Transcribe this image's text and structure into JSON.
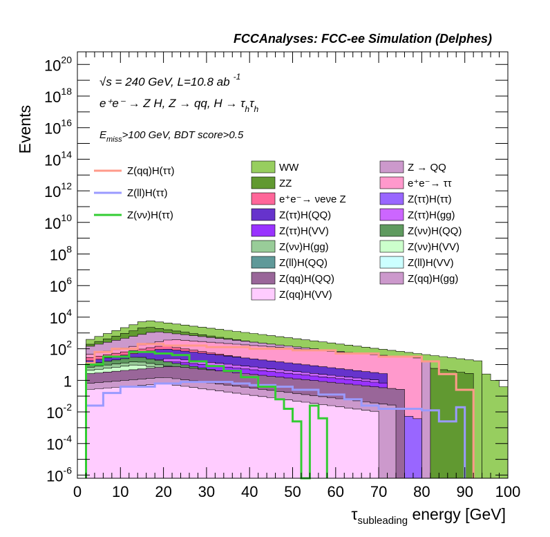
{
  "chart_data": {
    "type": "area",
    "title": "FCCAnalyses: FCC-ee Simulation (Delphes)",
    "ylabel": "Events",
    "xlabel_main": "τ",
    "xlabel_sub": "subleading",
    "xlabel_rest": " energy [GeV]",
    "xlim": [
      0,
      100
    ],
    "ylim_exp": [
      -6.2,
      20.8
    ],
    "yscale": "log",
    "x_ticks": [
      0,
      10,
      20,
      30,
      40,
      50,
      60,
      70,
      80,
      90,
      100
    ],
    "x_tick_labels": [
      "0",
      "10",
      "20",
      "30",
      "40",
      "50",
      "60",
      "70",
      "80",
      "90",
      "100"
    ],
    "y_tick_exps": [
      -6,
      -4,
      -2,
      0,
      2,
      4,
      6,
      8,
      10,
      12,
      14,
      16,
      18,
      20
    ],
    "y_tick_labels": [
      {
        "base": "10",
        "exp": "-6"
      },
      {
        "base": "10",
        "exp": "-4"
      },
      {
        "base": "10",
        "exp": "-2"
      },
      {
        "base": "1",
        "exp": ""
      },
      {
        "base": "10",
        "exp": "2"
      },
      {
        "base": "10",
        "exp": "4"
      },
      {
        "base": "10",
        "exp": "6"
      },
      {
        "base": "10",
        "exp": "8"
      },
      {
        "base": "10",
        "exp": "10"
      },
      {
        "base": "10",
        "exp": "12"
      },
      {
        "base": "10",
        "exp": "14"
      },
      {
        "base": "10",
        "exp": "16"
      },
      {
        "base": "10",
        "exp": "18"
      },
      {
        "base": "10",
        "exp": "20"
      }
    ],
    "annotations": [
      {
        "id": "energy",
        "text": "√s = 240 GeV, L=10.8 ab",
        "sup": "-1"
      },
      {
        "id": "process",
        "text": "e⁺e⁻ → Z H, Z → qq, H → τ",
        "sub1": "h",
        "text2": "τ",
        "sub2": "h"
      },
      {
        "id": "cuts",
        "text1": "E",
        "sub": "miss",
        "text2": ">100 GeV, BDT score>0.5"
      }
    ],
    "bin_width": 2,
    "stack_series": [
      {
        "name": "WW",
        "color": "#97ce5f",
        "segments": [
          {
            "x0": 2,
            "x1": 94,
            "start": 2.5,
            "peak": 3.8,
            "peak_x": 16,
            "end": 1.2
          },
          {
            "x0": 94,
            "x1": 100,
            "start": 0.6,
            "peak": 0.6,
            "peak_x": 94,
            "end": -0.6
          }
        ]
      },
      {
        "name": "ZZ",
        "color": "#619931",
        "segments": [
          {
            "x0": 2,
            "x1": 92,
            "start": 2.2,
            "peak": 3.4,
            "peak_x": 16,
            "end": 0.4
          }
        ]
      },
      {
        "name": "Z → QQ",
        "color": "#cc99cc",
        "segments": [
          {
            "x0": 2,
            "x1": 82,
            "start": 2.1,
            "peak": 3.1,
            "peak_x": 18,
            "end": 1.2
          }
        ]
      },
      {
        "name": "e⁺e⁻→ ττ",
        "color": "#ff99cc",
        "segments": [
          {
            "x0": 2,
            "x1": 80,
            "start": 1.6,
            "peak": 2.6,
            "peak_x": 22,
            "end": 1.4
          }
        ]
      },
      {
        "name": "e⁺e⁻→ νeνe Z",
        "color": "#ff6699",
        "segments": [
          {
            "x0": 2,
            "x1": 68,
            "start": 1.4,
            "peak": 2.2,
            "peak_x": 20,
            "end": 0.2
          }
        ]
      },
      {
        "name": "Z(ττ)H(ττ)",
        "color": "#9966ff",
        "segments": [
          {
            "x0": 2,
            "x1": 80,
            "start": 0.8,
            "peak": 1.8,
            "peak_x": 22,
            "end": -2.5
          }
        ]
      },
      {
        "name": "Z(ττ)H(QQ)",
        "color": "#6633cc",
        "segments": [
          {
            "x0": 2,
            "x1": 72,
            "start": 1.2,
            "peak": 2.0,
            "peak_x": 20,
            "end": 0.4
          }
        ]
      },
      {
        "name": "Z(ττ)H(gg)",
        "color": "#cc66ff",
        "segments": [
          {
            "x0": 2,
            "x1": 70,
            "start": 0.8,
            "peak": 1.4,
            "peak_x": 22,
            "end": 0.0
          }
        ]
      },
      {
        "name": "Z(ττ)H(VV)",
        "color": "#9933ff",
        "segments": [
          {
            "x0": 2,
            "x1": 72,
            "start": 0.6,
            "peak": 1.2,
            "peak_x": 22,
            "end": -0.2
          }
        ]
      },
      {
        "name": "Z(νν)H(QQ)",
        "color": "#5f9a5f",
        "segments": [
          {
            "x0": 2,
            "x1": 56,
            "start": 1.0,
            "peak": 1.5,
            "peak_x": 14,
            "end": -0.5
          }
        ]
      },
      {
        "name": "Z(νν)H(gg)",
        "color": "#99cc99",
        "segments": [
          {
            "x0": 2,
            "x1": 56,
            "start": 0.8,
            "peak": 1.2,
            "peak_x": 14,
            "end": -0.6
          }
        ]
      },
      {
        "name": "Z(νν)H(VV)",
        "color": "#ccffcc",
        "segments": [
          {
            "x0": 2,
            "x1": 56,
            "start": 0.6,
            "peak": 1.0,
            "peak_x": 14,
            "end": -0.8
          }
        ]
      },
      {
        "name": "Z(ll)H(QQ)",
        "color": "#5f9999",
        "segments": [
          {
            "x0": 4,
            "x1": 8,
            "start": -1.6,
            "peak": -1.6,
            "peak_x": 4,
            "end": -1.6
          },
          {
            "x0": 32,
            "x1": 38,
            "start": -1.6,
            "peak": -1.6,
            "peak_x": 32,
            "end": -1.6
          },
          {
            "x0": 48,
            "x1": 50,
            "start": -1.6,
            "peak": -1.6,
            "peak_x": 48,
            "end": -1.6
          }
        ]
      },
      {
        "name": "Z(ll)H(VV)",
        "color": "#ccffff",
        "segments": [
          {
            "x0": 8,
            "x1": 32,
            "start": -2.2,
            "peak": -1.8,
            "peak_x": 20,
            "end": -2.2
          },
          {
            "x0": 38,
            "x1": 48,
            "start": -2.2,
            "peak": -2.0,
            "peak_x": 42,
            "end": -2.4
          }
        ]
      },
      {
        "name": "Z(qq)H(QQ)",
        "color": "#996699",
        "segments": [
          {
            "x0": 2,
            "x1": 76,
            "start": 0.4,
            "peak": 0.9,
            "peak_x": 22,
            "end": -0.6
          }
        ]
      },
      {
        "name": "Z(qq)H(gg)",
        "color": "#cc99cc",
        "segments": [
          {
            "x0": 2,
            "x1": 74,
            "start": -0.2,
            "peak": 0.2,
            "peak_x": 20,
            "end": -1.6
          }
        ]
      },
      {
        "name": "Z(qq)H(VV)",
        "color": "#ffccff",
        "segments": [
          {
            "x0": 2,
            "x1": 70,
            "start": -0.6,
            "peak": -0.2,
            "peak_x": 20,
            "end": -2.0
          }
        ]
      }
    ],
    "signal_series": [
      {
        "name": "Z(qq)H(ττ)",
        "color": "#ff9a8a",
        "points": [
          [
            2,
            1.1
          ],
          [
            4,
            1.8
          ],
          [
            8,
            2.0
          ],
          [
            14,
            2.3
          ],
          [
            20,
            2.2
          ],
          [
            30,
            2.1
          ],
          [
            40,
            2.0
          ],
          [
            50,
            1.9
          ],
          [
            60,
            1.7
          ],
          [
            70,
            1.5
          ],
          [
            80,
            1.2
          ],
          [
            84,
            0.4
          ],
          [
            88,
            -0.6
          ],
          [
            92,
            -6.2
          ]
        ]
      },
      {
        "name": "Z(ll)H(ττ)",
        "color": "#9a9aff",
        "points": [
          [
            2,
            -1.6
          ],
          [
            6,
            -0.8
          ],
          [
            10,
            -0.4
          ],
          [
            18,
            -0.2
          ],
          [
            24,
            -0.1
          ],
          [
            30,
            -0.1
          ],
          [
            36,
            -0.2
          ],
          [
            40,
            -0.3
          ],
          [
            46,
            -0.4
          ],
          [
            50,
            -0.6
          ],
          [
            56,
            -0.9
          ],
          [
            62,
            -1.2
          ],
          [
            66,
            -1.6
          ],
          [
            70,
            -1.8
          ],
          [
            80,
            -1.9
          ],
          [
            84,
            -2.6
          ],
          [
            88,
            -1.7
          ],
          [
            90,
            -6.2
          ]
        ]
      },
      {
        "name": "Z(νν)H(ττ)",
        "color": "#33cc33",
        "points": [
          [
            2,
            -6.2
          ],
          [
            2,
            1.0
          ],
          [
            6,
            1.5
          ],
          [
            12,
            1.8
          ],
          [
            18,
            1.7
          ],
          [
            22,
            1.6
          ],
          [
            26,
            1.2
          ],
          [
            30,
            0.9
          ],
          [
            34,
            0.6
          ],
          [
            38,
            0.2
          ],
          [
            42,
            -0.4
          ],
          [
            46,
            -1.2
          ],
          [
            48,
            -1.8
          ],
          [
            50,
            -2.6
          ],
          [
            52,
            -6.2
          ],
          [
            54,
            -1.6
          ],
          [
            56,
            -2.4
          ],
          [
            58,
            -6.2
          ]
        ]
      }
    ],
    "legend_signal_labels": [
      "Z(qq)H(ττ)",
      "Z(ll)H(ττ)",
      "Z(νν)H(ττ)"
    ],
    "legend_stack_col1": [
      {
        "label": "WW",
        "color": "#97ce5f"
      },
      {
        "label": "ZZ",
        "color": "#619931"
      },
      {
        "label": "e⁺e⁻→ νeνe Z",
        "color": "#ff6699"
      },
      {
        "label": "Z(ττ)H(QQ)",
        "color": "#6633cc"
      },
      {
        "label": "Z(ττ)H(VV)",
        "color": "#9933ff"
      },
      {
        "label": "Z(νν)H(gg)",
        "color": "#99cc99"
      },
      {
        "label": "Z(ll)H(QQ)",
        "color": "#5f9999"
      },
      {
        "label": "Z(qq)H(QQ)",
        "color": "#996699"
      },
      {
        "label": "Z(qq)H(VV)",
        "color": "#ffccff"
      }
    ],
    "legend_stack_col2": [
      {
        "label": "Z → QQ",
        "color": "#cc99cc"
      },
      {
        "label": "e⁺e⁻→ ττ",
        "color": "#ff99cc"
      },
      {
        "label": "Z(ττ)H(ττ)",
        "color": "#9966ff"
      },
      {
        "label": "Z(ττ)H(gg)",
        "color": "#cc66ff"
      },
      {
        "label": "Z(νν)H(QQ)",
        "color": "#5f9a5f"
      },
      {
        "label": "Z(νν)H(VV)",
        "color": "#ccffcc"
      },
      {
        "label": "Z(ll)H(VV)",
        "color": "#ccffff"
      },
      {
        "label": "Z(qq)H(gg)",
        "color": "#cc99cc"
      }
    ]
  }
}
